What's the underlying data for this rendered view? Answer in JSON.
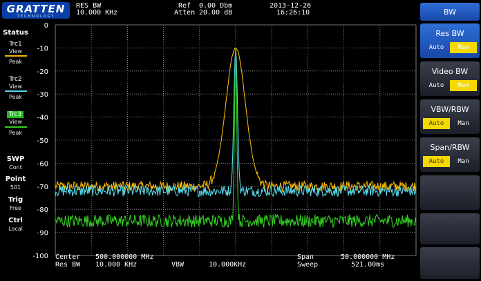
{
  "logo": {
    "name": "GRATTEN",
    "sub": "TECHNOLOGY"
  },
  "header": {
    "param1_label": "RES BW",
    "param1_value": "10.000 KHz",
    "ref_label": "Ref",
    "ref_value": "0.00 Dbm",
    "atten_label": "Atten",
    "atten_value": "20.00 dB",
    "date": "2013-12-26",
    "time": "16:26:10"
  },
  "status": {
    "title": "Status",
    "trc1": "Trc1",
    "trc1_mode": "View",
    "trc1_det": "Peak",
    "trc2": "Trc2",
    "trc2_mode": "View",
    "trc2_det": "Peak",
    "trc3": "Trc3",
    "trc3_mode": "View",
    "trc3_det": "Peak",
    "swp": "SWP",
    "swp_val": "Cont",
    "point": "Point",
    "point_val": "501",
    "trig": "Trig",
    "trig_val": "Free",
    "ctrl": "Ctrl",
    "ctrl_val": "Local"
  },
  "colors": {
    "trace1": "#f5b700",
    "trace2": "#58d8e8",
    "trace3": "#33cc22",
    "grid": "#9a9a9a",
    "softkey_active": "#2f6fd6",
    "highlight": "#f5d800"
  },
  "plot": {
    "y_ticks": [
      "0",
      "-10",
      "-20",
      "-30",
      "-40",
      "-50",
      "-60",
      "-70",
      "-80",
      "-90",
      "-100"
    ],
    "center_label": "Center",
    "center_value": "500.000000 MHz",
    "resbw_label": "Res BW",
    "resbw_value": "10.000 KHz",
    "vbw_label": "VBW",
    "vbw_value": "10.000KHz",
    "span_label": "Span",
    "span_value": "50.000000 MHz",
    "sweep_label": "Sweep",
    "sweep_value": "521.00ms"
  },
  "softkeys": {
    "menu_title": "BW",
    "res_bw": {
      "label": "Res BW",
      "auto": "Auto",
      "man": "Man",
      "selected": "Man"
    },
    "video_bw": {
      "label": "Video BW",
      "auto": "Auto",
      "man": "Man",
      "selected": "Man"
    },
    "vbw_rbw": {
      "label": "VBW/RBW",
      "auto": "Auto",
      "man": "Man",
      "selected": "Auto"
    },
    "span_rbw": {
      "label": "Span/RBW",
      "auto": "Auto",
      "man": "Man",
      "selected": "Auto"
    }
  },
  "chart_data": {
    "type": "line",
    "x_range_mhz": [
      475,
      525
    ],
    "ylim": [
      -100,
      0
    ],
    "y_unit": "dBm",
    "grid": true,
    "series": [
      {
        "peak_x_mhz": 500,
        "peak_y": -10,
        "noise_floor": -70
      },
      {
        "peak_x_mhz": 500,
        "peak_y": -10,
        "noise_floor": -72
      },
      {
        "peak_x_mhz": 500,
        "peak_y": -10,
        "noise_floor": -85
      }
    ]
  }
}
